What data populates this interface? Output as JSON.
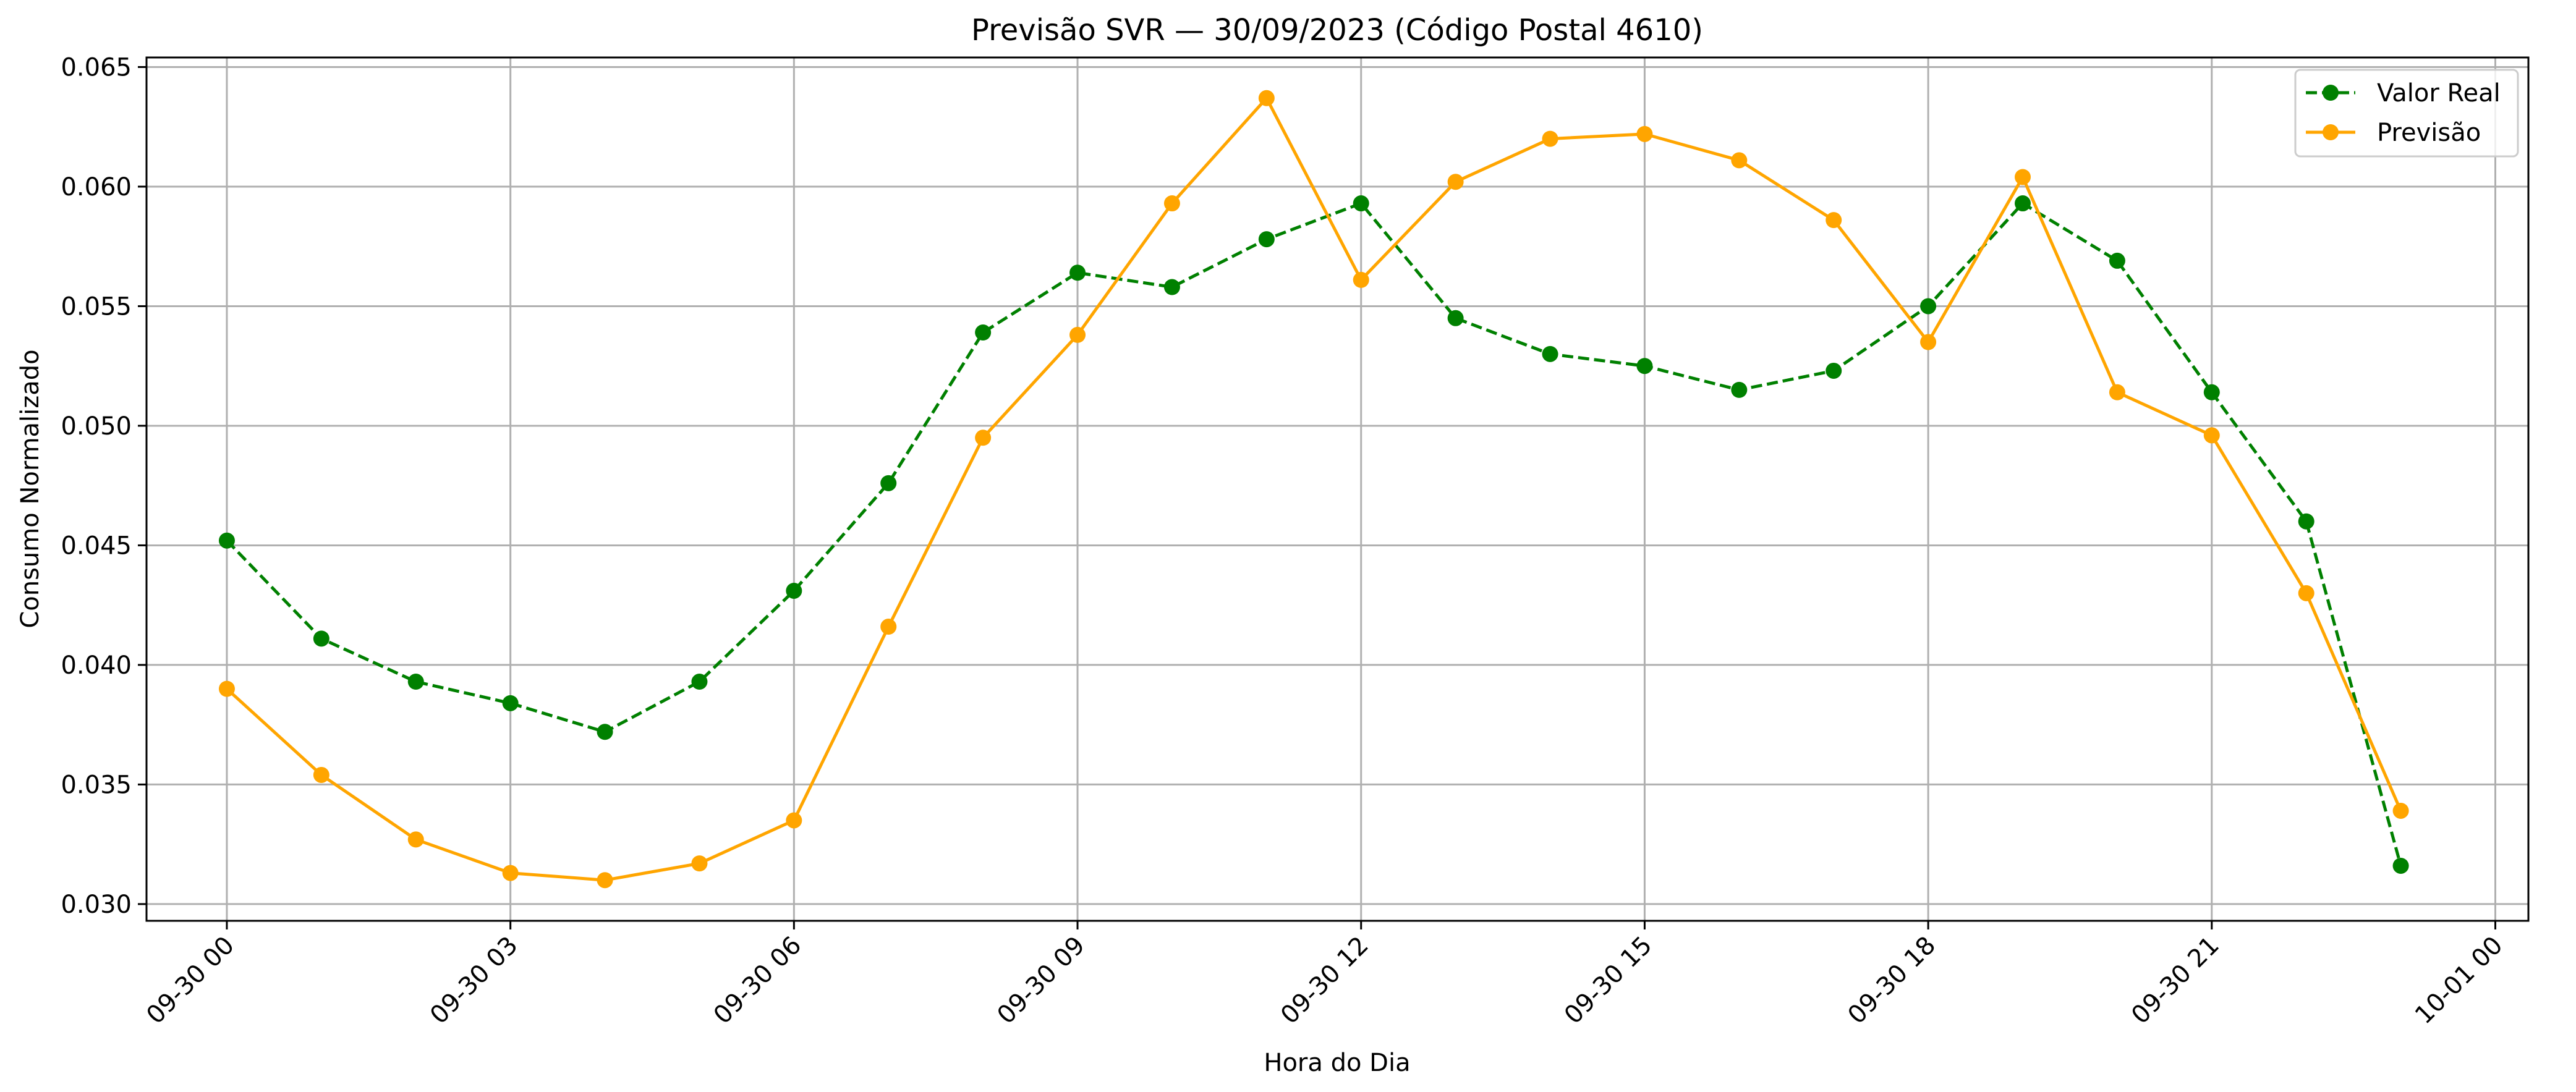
{
  "chart_data": {
    "type": "line",
    "title": "Previsão SVR — 30/09/2023 (Código Postal 4610)",
    "xlabel": "Hora do Dia",
    "ylabel": "Consumo Normalizado",
    "x_hours": [
      0,
      1,
      2,
      3,
      4,
      5,
      6,
      7,
      8,
      9,
      10,
      11,
      12,
      13,
      14,
      15,
      16,
      17,
      18,
      19,
      20,
      21,
      22,
      23
    ],
    "xlim": [
      -0.85,
      24.35
    ],
    "ylim": [
      0.0293,
      0.0654
    ],
    "x_ticks": [
      {
        "hour": 0,
        "label": "09-30 00"
      },
      {
        "hour": 3,
        "label": "09-30 03"
      },
      {
        "hour": 6,
        "label": "09-30 06"
      },
      {
        "hour": 9,
        "label": "09-30 09"
      },
      {
        "hour": 12,
        "label": "09-30 12"
      },
      {
        "hour": 15,
        "label": "09-30 15"
      },
      {
        "hour": 18,
        "label": "09-30 18"
      },
      {
        "hour": 21,
        "label": "09-30 21"
      },
      {
        "hour": 24,
        "label": "10-01 00"
      }
    ],
    "y_ticks": [
      {
        "value": 0.03,
        "label": "0.030"
      },
      {
        "value": 0.035,
        "label": "0.035"
      },
      {
        "value": 0.04,
        "label": "0.040"
      },
      {
        "value": 0.045,
        "label": "0.045"
      },
      {
        "value": 0.05,
        "label": "0.050"
      },
      {
        "value": 0.055,
        "label": "0.055"
      },
      {
        "value": 0.06,
        "label": "0.060"
      },
      {
        "value": 0.065,
        "label": "0.065"
      }
    ],
    "grid": true,
    "legend_position": "top-right",
    "series": [
      {
        "name": "Valor Real",
        "color": "#008000",
        "line_style": "dashed",
        "marker": "circle",
        "values": [
          0.0452,
          0.0411,
          0.0393,
          0.0384,
          0.0372,
          0.0393,
          0.0431,
          0.0476,
          0.0539,
          0.0564,
          0.0558,
          0.0578,
          0.0593,
          0.0545,
          0.053,
          0.0525,
          0.0515,
          0.0523,
          0.055,
          0.0593,
          0.0569,
          0.0514,
          0.046,
          0.0316
        ]
      },
      {
        "name": "Previsão",
        "color": "#ffa500",
        "line_style": "solid",
        "marker": "circle",
        "values": [
          0.039,
          0.0354,
          0.0327,
          0.0313,
          0.031,
          0.0317,
          0.0335,
          0.0416,
          0.0495,
          0.0538,
          0.0593,
          0.0637,
          0.0561,
          0.0602,
          0.062,
          0.0622,
          0.0611,
          0.0586,
          0.0535,
          0.0604,
          0.0514,
          0.0496,
          0.043,
          0.0339
        ]
      }
    ]
  }
}
